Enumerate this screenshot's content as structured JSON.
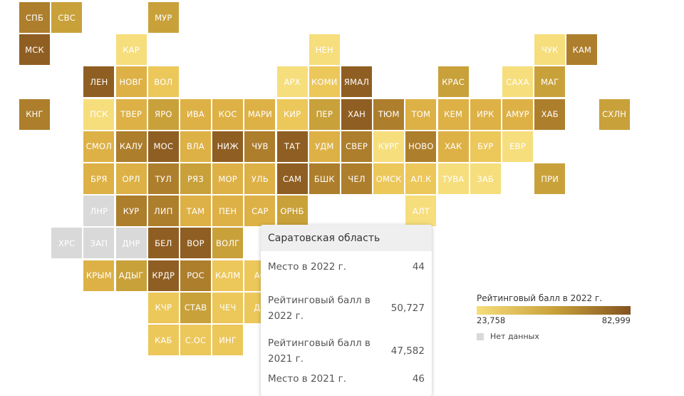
{
  "colors": {
    "1": "#f6de7c",
    "2": "#ecc75a",
    "3": "#ddb146",
    "4": "#c9a13a",
    "5": "#ad7e2c",
    "6": "#8f5e22",
    "na": "#d9d9d9"
  },
  "chart_data": {
    "type": "heatmap",
    "rows": [
      [
        {
          "c": 0,
          "label": "СПБ",
          "level": 5
        },
        {
          "c": 1,
          "label": "СВС",
          "level": 4
        },
        {
          "c": 4,
          "label": "МУР",
          "level": 4
        }
      ],
      [
        {
          "c": 0,
          "label": "МСК",
          "level": 6
        },
        {
          "c": 3,
          "label": "КАР",
          "level": 1
        },
        {
          "c": 9,
          "label": "НЕН",
          "level": 1
        },
        {
          "c": 16,
          "label": "ЧУК",
          "level": 1
        },
        {
          "c": 17,
          "label": "КАМ",
          "level": 5
        }
      ],
      [
        {
          "c": 2,
          "label": "ЛЕН",
          "level": 6
        },
        {
          "c": 3,
          "label": "НОВГ",
          "level": 3
        },
        {
          "c": 4,
          "label": "ВОЛ",
          "level": 2
        },
        {
          "c": 8,
          "label": "АРХ",
          "level": 1
        },
        {
          "c": 9,
          "label": "КОМИ",
          "level": 2
        },
        {
          "c": 10,
          "label": "ЯМАЛ",
          "level": 6
        },
        {
          "c": 13,
          "label": "КРАС",
          "level": 4
        },
        {
          "c": 15,
          "label": "САХА",
          "level": 1
        },
        {
          "c": 16,
          "label": "МАГ",
          "level": 4
        }
      ],
      [
        {
          "c": 0,
          "label": "КНГ",
          "level": 5
        },
        {
          "c": 2,
          "label": "ПСК",
          "level": 1
        },
        {
          "c": 3,
          "label": "ТВЕР",
          "level": 3
        },
        {
          "c": 4,
          "label": "ЯРО",
          "level": 4
        },
        {
          "c": 5,
          "label": "ИВА",
          "level": 3
        },
        {
          "c": 6,
          "label": "КОС",
          "level": 3
        },
        {
          "c": 7,
          "label": "МАРИ",
          "level": 3
        },
        {
          "c": 8,
          "label": "КИР",
          "level": 2
        },
        {
          "c": 9,
          "label": "ПЕР",
          "level": 4
        },
        {
          "c": 10,
          "label": "ХАН",
          "level": 6
        },
        {
          "c": 11,
          "label": "ТЮМ",
          "level": 5
        },
        {
          "c": 12,
          "label": "ТОМ",
          "level": 3
        },
        {
          "c": 13,
          "label": "КЕМ",
          "level": 3
        },
        {
          "c": 14,
          "label": "ИРК",
          "level": 3
        },
        {
          "c": 15,
          "label": "АМУР",
          "level": 3
        },
        {
          "c": 16,
          "label": "ХАБ",
          "level": 5
        },
        {
          "c": 18,
          "label": "СХЛН",
          "level": 4
        }
      ],
      [
        {
          "c": 2,
          "label": "СМОЛ",
          "level": 3
        },
        {
          "c": 3,
          "label": "КАЛУ",
          "level": 5
        },
        {
          "c": 4,
          "label": "МОС",
          "level": 6
        },
        {
          "c": 5,
          "label": "ВЛА",
          "level": 3
        },
        {
          "c": 6,
          "label": "НИЖ",
          "level": 6
        },
        {
          "c": 7,
          "label": "ЧУВ",
          "level": 5
        },
        {
          "c": 8,
          "label": "ТАТ",
          "level": 6
        },
        {
          "c": 9,
          "label": "УДМ",
          "level": 3
        },
        {
          "c": 10,
          "label": "СВЕР",
          "level": 5
        },
        {
          "c": 11,
          "label": "КУРГ",
          "level": 1
        },
        {
          "c": 12,
          "label": "НОВО",
          "level": 5
        },
        {
          "c": 13,
          "label": "ХАК",
          "level": 3
        },
        {
          "c": 14,
          "label": "БУР",
          "level": 2
        },
        {
          "c": 15,
          "label": "ЕВР",
          "level": 1
        }
      ],
      [
        {
          "c": 2,
          "label": "БРЯ",
          "level": 3
        },
        {
          "c": 3,
          "label": "ОРЛ",
          "level": 3
        },
        {
          "c": 4,
          "label": "ТУЛ",
          "level": 5
        },
        {
          "c": 5,
          "label": "РЯЗ",
          "level": 4
        },
        {
          "c": 6,
          "label": "МОР",
          "level": 3
        },
        {
          "c": 7,
          "label": "УЛЬ",
          "level": 3
        },
        {
          "c": 8,
          "label": "САМ",
          "level": 6
        },
        {
          "c": 9,
          "label": "БШК",
          "level": 5
        },
        {
          "c": 10,
          "label": "ЧЕЛ",
          "level": 5
        },
        {
          "c": 11,
          "label": "ОМСК",
          "level": 2
        },
        {
          "c": 12,
          "label": "АЛ.К",
          "level": 2
        },
        {
          "c": 13,
          "label": "ТУВА",
          "level": 1
        },
        {
          "c": 14,
          "label": "ЗАБ",
          "level": 1
        },
        {
          "c": 16,
          "label": "ПРИ",
          "level": 4
        }
      ],
      [
        {
          "c": 2,
          "label": "ЛНР",
          "level": "na"
        },
        {
          "c": 3,
          "label": "КУР",
          "level": 5
        },
        {
          "c": 4,
          "label": "ЛИП",
          "level": 5
        },
        {
          "c": 5,
          "label": "ТАМ",
          "level": 3
        },
        {
          "c": 6,
          "label": "ПЕН",
          "level": 3
        },
        {
          "c": 7,
          "label": "САР",
          "level": 3
        },
        {
          "c": 8,
          "label": "ОРНБ",
          "level": 4
        },
        {
          "c": 12,
          "label": "АЛТ",
          "level": 1
        }
      ],
      [
        {
          "c": 1,
          "label": "ХРС",
          "level": "na"
        },
        {
          "c": 2,
          "label": "ЗАП",
          "level": "na"
        },
        {
          "c": 3,
          "label": "ДНР",
          "level": "na"
        },
        {
          "c": 4,
          "label": "БЕЛ",
          "level": 6
        },
        {
          "c": 5,
          "label": "ВОР",
          "level": 6
        },
        {
          "c": 6,
          "label": "ВОЛГ",
          "level": 4
        }
      ],
      [
        {
          "c": 2,
          "label": "КРЫМ",
          "level": 3
        },
        {
          "c": 3,
          "label": "АДЫГ",
          "level": 4
        },
        {
          "c": 4,
          "label": "КРДР",
          "level": 6
        },
        {
          "c": 5,
          "label": "РОС",
          "level": 5
        },
        {
          "c": 6,
          "label": "КАЛМ",
          "level": 2
        },
        {
          "c": 7,
          "label": "АС",
          "level": 2
        }
      ],
      [
        {
          "c": 4,
          "label": "КЧР",
          "level": 2
        },
        {
          "c": 5,
          "label": "СТАВ",
          "level": 4
        },
        {
          "c": 6,
          "label": "ЧЕЧ",
          "level": 2
        },
        {
          "c": 7,
          "label": "ДА",
          "level": 2
        }
      ],
      [
        {
          "c": 4,
          "label": "КАБ",
          "level": 2
        },
        {
          "c": 5,
          "label": "С.ОС",
          "level": 2
        },
        {
          "c": 6,
          "label": "ИНГ",
          "level": 2
        }
      ]
    ],
    "legend": {
      "title": "Рейтинговый балл в 2022 г.",
      "min": "23,758",
      "max": "82,999",
      "no_data": "Нет данных"
    }
  },
  "tooltip": {
    "title": "Саратовская область",
    "rows": [
      {
        "label": "Место в 2022 г.",
        "value": "44"
      },
      {
        "label": "Рейтинговый балл в 2022 г.",
        "value": "50,727"
      },
      {
        "label": "Рейтинговый балл в 2021 г.",
        "value": "47,582"
      },
      {
        "label": "Место в 2021 г.",
        "value": "46"
      }
    ]
  }
}
